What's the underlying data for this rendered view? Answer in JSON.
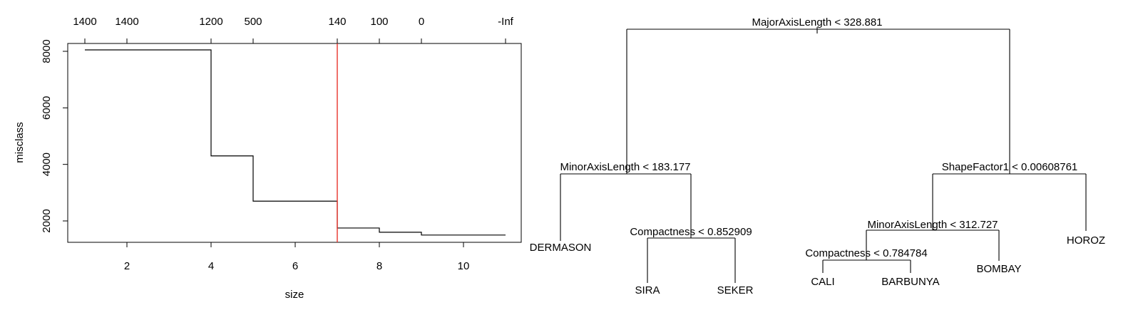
{
  "chart_data": [
    {
      "type": "line",
      "subtype": "step",
      "xlabel": "size",
      "ylabel": "misclass",
      "xlim": [
        1,
        11
      ],
      "ylim": [
        1300,
        8200
      ],
      "x_ticks": [
        2,
        4,
        6,
        8,
        10
      ],
      "y_ticks": [
        2000,
        4000,
        6000,
        8000
      ],
      "top_axis": {
        "positions": [
          1,
          2,
          4,
          5,
          7,
          8,
          9,
          11
        ],
        "labels": [
          "1400",
          "1400",
          "1200",
          "500",
          "140",
          "100",
          "0",
          "-Inf"
        ]
      },
      "series": [
        {
          "x": [
            1,
            4,
            5,
            7,
            8,
            9,
            11
          ],
          "y": [
            8050,
            4300,
            2700,
            1750,
            1600,
            1500,
            1500
          ]
        }
      ],
      "vline": {
        "x": 7,
        "color": "#e8322b"
      },
      "grid": false
    },
    {
      "type": "tree",
      "root": {
        "split": "MajorAxisLength < 328.881",
        "left": {
          "split": "MinorAxisLength < 183.177",
          "left": {
            "leaf": "DERMASON"
          },
          "right": {
            "split": "Compactness < 0.852909",
            "left": {
              "leaf": "SIRA"
            },
            "right": {
              "leaf": "SEKER"
            }
          }
        },
        "right": {
          "split": "ShapeFactor1 < 0.00608761",
          "left": {
            "split": "MinorAxisLength < 312.727",
            "left": {
              "split": "Compactness < 0.784784",
              "left": {
                "leaf": "CALI"
              },
              "right": {
                "leaf": "BARBUNYA"
              }
            },
            "right": {
              "leaf": "BOMBAY"
            }
          },
          "right": {
            "leaf": "HOROZ"
          }
        }
      }
    }
  ]
}
